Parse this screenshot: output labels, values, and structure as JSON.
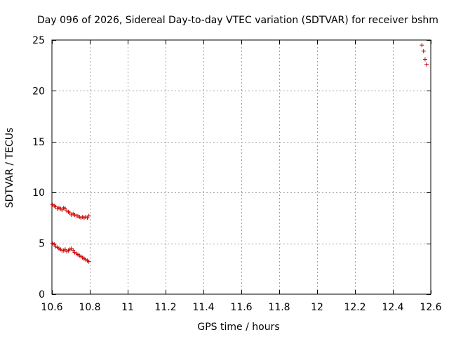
{
  "chart_data": {
    "type": "scatter",
    "title": "Day 096 of 2026, Sidereal Day-to-day VTEC variation (SDTVAR) for receiver bshm",
    "xlabel": "GPS time / hours",
    "ylabel": "SDTVAR / TECUs",
    "xlim": [
      10.6,
      12.6
    ],
    "ylim": [
      0,
      25
    ],
    "xticks": [
      10.6,
      10.8,
      11,
      11.2,
      11.4,
      11.6,
      11.8,
      12,
      12.2,
      12.4,
      12.6
    ],
    "xtick_labels": [
      "10.6",
      "10.8",
      "11",
      "11.2",
      "11.4",
      "11.6",
      "11.8",
      "12",
      "12.2",
      "12.4",
      "12.6"
    ],
    "yticks": [
      0,
      5,
      10,
      15,
      20,
      25
    ],
    "ytick_labels": [
      "0",
      "5",
      "10",
      "15",
      "20",
      "25"
    ],
    "grid": true,
    "marker": "+",
    "color": "#cc0000",
    "series": [
      {
        "name": "upper",
        "x": [
          10.603,
          10.612,
          10.62,
          10.628,
          10.637,
          10.645,
          10.653,
          10.662,
          10.67,
          10.678,
          10.687,
          10.695,
          10.703,
          10.712,
          10.72,
          10.728,
          10.737,
          10.745,
          10.753,
          10.762,
          10.77,
          10.778,
          10.787,
          10.795
        ],
        "y": [
          8.8,
          8.7,
          8.6,
          8.4,
          8.5,
          8.4,
          8.3,
          8.5,
          8.4,
          8.2,
          8.1,
          8.0,
          7.8,
          7.9,
          7.8,
          7.7,
          7.7,
          7.6,
          7.5,
          7.6,
          7.5,
          7.6,
          7.5,
          7.7
        ]
      },
      {
        "name": "lower",
        "x": [
          10.603,
          10.612,
          10.62,
          10.628,
          10.637,
          10.645,
          10.653,
          10.662,
          10.67,
          10.678,
          10.687,
          10.695,
          10.703,
          10.712,
          10.72,
          10.728,
          10.737,
          10.745,
          10.753,
          10.762,
          10.77,
          10.778,
          10.787,
          10.795
        ],
        "y": [
          5.0,
          4.9,
          4.7,
          4.6,
          4.5,
          4.4,
          4.3,
          4.3,
          4.4,
          4.2,
          4.3,
          4.4,
          4.5,
          4.3,
          4.1,
          4.0,
          3.9,
          3.8,
          3.7,
          3.6,
          3.5,
          3.4,
          3.3,
          3.2
        ]
      },
      {
        "name": "late",
        "x": [
          12.553,
          12.562,
          12.57,
          12.578
        ],
        "y": [
          24.5,
          23.9,
          23.1,
          22.6
        ]
      }
    ]
  }
}
